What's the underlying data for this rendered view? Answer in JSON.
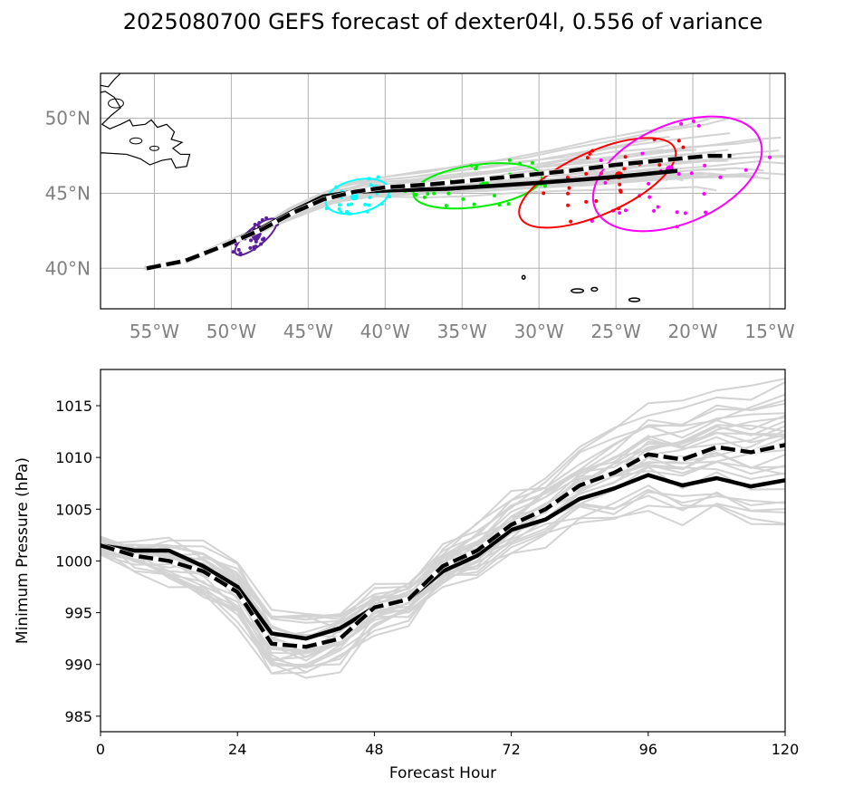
{
  "title": "2025080700 GEFS forecast of dexter04l, 0.556 of variance",
  "chart_data": [
    {
      "type": "map-track",
      "xlim": [
        -58.5,
        -14.0
      ],
      "ylim": [
        37.3,
        53.0
      ],
      "x_ticks": [
        -55,
        -50,
        -45,
        -40,
        -35,
        -30,
        -25,
        -20,
        -15
      ],
      "x_tick_labels": [
        "55°W",
        "50°W",
        "45°W",
        "40°W",
        "35°W",
        "30°W",
        "25°W",
        "20°W",
        "15°W"
      ],
      "y_ticks": [
        40,
        45,
        50
      ],
      "y_tick_labels": [
        "40°N",
        "45°N",
        "50°N"
      ],
      "grid": true,
      "ensemble_color": "#d3d3d3",
      "mean_track": {
        "style": "solid",
        "color": "#000000",
        "lon": [
          -55.5,
          -53,
          -50.5,
          -48,
          -46,
          -44,
          -42,
          -39.5,
          -36,
          -33,
          -30,
          -27.5,
          -25,
          -23,
          -21
        ],
        "lat": [
          40.0,
          40.5,
          41.5,
          42.7,
          43.8,
          44.8,
          45.1,
          45.2,
          45.3,
          45.5,
          45.7,
          45.9,
          46.1,
          46.3,
          46.5
        ]
      },
      "control_track": {
        "style": "dashed",
        "color": "#000000",
        "lon": [
          -55.5,
          -53,
          -50.5,
          -48,
          -46,
          -44,
          -42,
          -40,
          -37,
          -34,
          -31,
          -28,
          -25,
          -22,
          -19,
          -17.5
        ],
        "lat": [
          40.0,
          40.5,
          41.5,
          42.6,
          43.7,
          44.6,
          45.1,
          45.4,
          45.6,
          45.9,
          46.2,
          46.5,
          46.9,
          47.2,
          47.5,
          47.5
        ]
      },
      "ellipses": [
        {
          "color": "#5b1f9a",
          "center": [
            -48.4,
            42.1
          ],
          "rx": 1.7,
          "ry": 0.6,
          "angle": 40,
          "centroid": [
            -48.4,
            42.1
          ]
        },
        {
          "color": "#00ffff",
          "center": [
            -41.8,
            44.8
          ],
          "rx": 2.1,
          "ry": 1.1,
          "angle": 13,
          "centroid": [
            -42.0,
            44.8
          ]
        },
        {
          "color": "#00ee00",
          "center": [
            -34.0,
            45.5
          ],
          "rx": 4.2,
          "ry": 1.4,
          "angle": 8,
          "centroid": [
            -33.5,
            45.6
          ]
        },
        {
          "color": "#ff0000",
          "center": [
            -26.2,
            45.7
          ],
          "rx": 5.5,
          "ry": 2.1,
          "angle": 24,
          "centroid": [
            -24.8,
            46.2
          ]
        },
        {
          "color": "#ff00ff",
          "center": [
            -21.0,
            46.3
          ],
          "rx": 5.8,
          "ry": 3.3,
          "angle": 23,
          "centroid": [
            -21.5,
            46.6
          ]
        }
      ]
    },
    {
      "type": "line",
      "xlabel": "Forecast Hour",
      "ylabel": "Minimum Pressure (hPa)",
      "xlim": [
        0,
        120
      ],
      "ylim": [
        983.5,
        1018.5
      ],
      "x_ticks": [
        0,
        24,
        48,
        72,
        96,
        120
      ],
      "y_ticks": [
        985,
        990,
        995,
        1000,
        1005,
        1010,
        1015
      ],
      "x": [
        0,
        6,
        12,
        18,
        24,
        30,
        36,
        42,
        48,
        54,
        60,
        66,
        72,
        78,
        84,
        90,
        96,
        102,
        108,
        114,
        120
      ],
      "series": [
        {
          "style": "solid",
          "color": "#000000",
          "values": [
            1001.5,
            1001.0,
            1001.0,
            999.5,
            997.5,
            993.0,
            992.5,
            993.5,
            995.5,
            996.3,
            999.0,
            1000.5,
            1003.0,
            1004.0,
            1006.0,
            1007.0,
            1008.3,
            1007.3,
            1008.0,
            1007.2,
            1007.8
          ]
        },
        {
          "style": "dashed",
          "color": "#000000",
          "values": [
            1001.5,
            1000.5,
            1000.0,
            999.0,
            997.0,
            992.0,
            991.7,
            992.5,
            995.5,
            996.3,
            999.5,
            1001.0,
            1003.5,
            1005.0,
            1007.3,
            1008.5,
            1010.3,
            1009.8,
            1011.0,
            1010.5,
            1011.2
          ]
        }
      ],
      "ensemble_color": "#d3d3d3"
    }
  ]
}
